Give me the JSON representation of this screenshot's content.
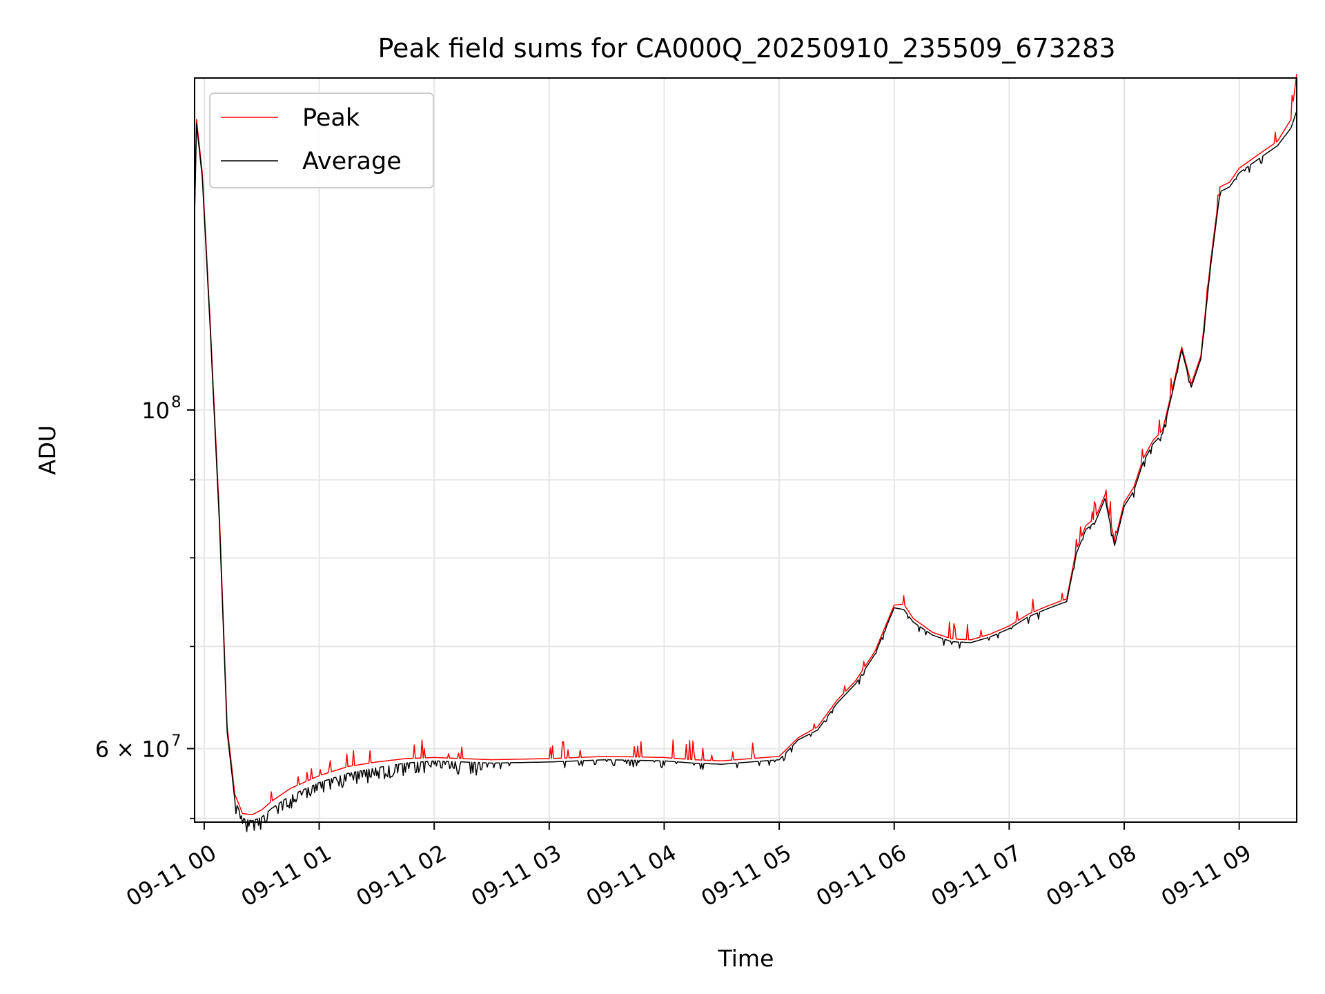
{
  "chart_data": {
    "type": "line",
    "title": "Peak field sums for CA000Q_20250910_235509_673283",
    "xlabel": "Time",
    "ylabel": "ADU",
    "y_scale": "log",
    "ylim": [
      53700000,
      165000000
    ],
    "xlim": [
      "2025-09-10 23:55:00",
      "2025-09-11 09:30:00"
    ],
    "grid": true,
    "legend_position": "upper-left",
    "x_ticks": [
      {
        "value": "2025-09-11 00:00",
        "label": "09-11 00"
      },
      {
        "value": "2025-09-11 01:00",
        "label": "09-11 01"
      },
      {
        "value": "2025-09-11 02:00",
        "label": "09-11 02"
      },
      {
        "value": "2025-09-11 03:00",
        "label": "09-11 03"
      },
      {
        "value": "2025-09-11 04:00",
        "label": "09-11 04"
      },
      {
        "value": "2025-09-11 05:00",
        "label": "09-11 05"
      },
      {
        "value": "2025-09-11 06:00",
        "label": "09-11 06"
      },
      {
        "value": "2025-09-11 07:00",
        "label": "09-11 07"
      },
      {
        "value": "2025-09-11 08:00",
        "label": "09-11 08"
      },
      {
        "value": "2025-09-11 09:00",
        "label": "09-11 09"
      }
    ],
    "y_major_ticks": [
      {
        "value": 60000000,
        "label_main": "6 × 10",
        "label_sup": "7"
      },
      {
        "value": 100000000,
        "label_main": "10",
        "label_sup": "8"
      }
    ],
    "y_minor_ticks": [
      54000000,
      70000000,
      80000000,
      90000000
    ],
    "series": [
      {
        "name": "Peak",
        "color": "#ff0000",
        "x": [
          "2025-09-10 23:55",
          "2025-09-10 23:56",
          "2025-09-10 23:59",
          "2025-09-11 00:03",
          "2025-09-11 00:08",
          "2025-09-11 00:12",
          "2025-09-11 00:16",
          "2025-09-11 00:20",
          "2025-09-11 00:25",
          "2025-09-11 00:30",
          "2025-09-11 00:35",
          "2025-09-11 00:45",
          "2025-09-11 01:00",
          "2025-09-11 01:15",
          "2025-09-11 01:30",
          "2025-09-11 01:45",
          "2025-09-11 02:00",
          "2025-09-11 02:30",
          "2025-09-11 03:00",
          "2025-09-11 03:30",
          "2025-09-11 04:00",
          "2025-09-11 04:15",
          "2025-09-11 04:30",
          "2025-09-11 05:00",
          "2025-09-11 05:10",
          "2025-09-11 05:20",
          "2025-09-11 05:30",
          "2025-09-11 05:40",
          "2025-09-11 05:50",
          "2025-09-11 06:00",
          "2025-09-11 06:05",
          "2025-09-11 06:10",
          "2025-09-11 06:20",
          "2025-09-11 06:30",
          "2025-09-11 06:40",
          "2025-09-11 06:50",
          "2025-09-11 07:00",
          "2025-09-11 07:10",
          "2025-09-11 07:20",
          "2025-09-11 07:30",
          "2025-09-11 07:35",
          "2025-09-11 07:40",
          "2025-09-11 07:45",
          "2025-09-11 07:50",
          "2025-09-11 07:55",
          "2025-09-11 08:00",
          "2025-09-11 08:05",
          "2025-09-11 08:10",
          "2025-09-11 08:15",
          "2025-09-11 08:20",
          "2025-09-11 08:25",
          "2025-09-11 08:30",
          "2025-09-11 08:35",
          "2025-09-11 08:40",
          "2025-09-11 08:45",
          "2025-09-11 08:50",
          "2025-09-11 08:55",
          "2025-09-11 09:00",
          "2025-09-11 09:10",
          "2025-09-11 09:20",
          "2025-09-11 09:27",
          "2025-09-11 09:30"
        ],
        "values": [
          135000000,
          155000000,
          143000000,
          115000000,
          85000000,
          62000000,
          56000000,
          54400000,
          54300000,
          54700000,
          55400000,
          56500000,
          57600000,
          58400000,
          58800000,
          59100000,
          59200000,
          59000000,
          59100000,
          59300000,
          59200000,
          59000000,
          58900000,
          59300000,
          61000000,
          62000000,
          64500000,
          66500000,
          69500000,
          74500000,
          74600000,
          73000000,
          71500000,
          70800000,
          70700000,
          71300000,
          72200000,
          73500000,
          74400000,
          75200000,
          81000000,
          84000000,
          85000000,
          88000000,
          82000000,
          87000000,
          89000000,
          93000000,
          95500000,
          97000000,
          103000000,
          110000000,
          104000000,
          108500000,
          125000000,
          140000000,
          141000000,
          144000000,
          147000000,
          150000000,
          155000000,
          166000000
        ]
      },
      {
        "name": "Average",
        "color": "#000000",
        "x": [
          "2025-09-10 23:55",
          "2025-09-10 23:56",
          "2025-09-10 23:59",
          "2025-09-11 00:03",
          "2025-09-11 00:08",
          "2025-09-11 00:12",
          "2025-09-11 00:16",
          "2025-09-11 00:20",
          "2025-09-11 00:25",
          "2025-09-11 00:30",
          "2025-09-11 00:35",
          "2025-09-11 00:45",
          "2025-09-11 01:00",
          "2025-09-11 01:15",
          "2025-09-11 01:30",
          "2025-09-11 01:45",
          "2025-09-11 02:00",
          "2025-09-11 02:30",
          "2025-09-11 03:00",
          "2025-09-11 03:30",
          "2025-09-11 04:00",
          "2025-09-11 04:15",
          "2025-09-11 04:30",
          "2025-09-11 05:00",
          "2025-09-11 05:10",
          "2025-09-11 05:20",
          "2025-09-11 05:30",
          "2025-09-11 05:40",
          "2025-09-11 05:50",
          "2025-09-11 06:00",
          "2025-09-11 06:05",
          "2025-09-11 06:10",
          "2025-09-11 06:20",
          "2025-09-11 06:30",
          "2025-09-11 06:40",
          "2025-09-11 06:50",
          "2025-09-11 07:00",
          "2025-09-11 07:10",
          "2025-09-11 07:20",
          "2025-09-11 07:30",
          "2025-09-11 07:35",
          "2025-09-11 07:40",
          "2025-09-11 07:45",
          "2025-09-11 07:50",
          "2025-09-11 07:55",
          "2025-09-11 08:00",
          "2025-09-11 08:05",
          "2025-09-11 08:10",
          "2025-09-11 08:15",
          "2025-09-11 08:20",
          "2025-09-11 08:25",
          "2025-09-11 08:30",
          "2025-09-11 08:35",
          "2025-09-11 08:40",
          "2025-09-11 08:45",
          "2025-09-11 08:50",
          "2025-09-11 08:55",
          "2025-09-11 09:00",
          "2025-09-11 09:10",
          "2025-09-11 09:20",
          "2025-09-11 09:27",
          "2025-09-11 09:30"
        ],
        "values": [
          134000000,
          154000000,
          142000000,
          114000000,
          84000000,
          61500000,
          55500000,
          54000000,
          53800000,
          54100000,
          54800000,
          55900000,
          57000000,
          57800000,
          58300000,
          58700000,
          58900000,
          58700000,
          58800000,
          59000000,
          58900000,
          58700000,
          58600000,
          59000000,
          60800000,
          61700000,
          64200000,
          66200000,
          69200000,
          74200000,
          74000000,
          72600000,
          71200000,
          70500000,
          70400000,
          71000000,
          71900000,
          73200000,
          74100000,
          74900000,
          80500000,
          83500000,
          84500000,
          87500000,
          81500000,
          86500000,
          88500000,
          92500000,
          95000000,
          96500000,
          102500000,
          109500000,
          103500000,
          108000000,
          124000000,
          139000000,
          140000000,
          143000000,
          146000000,
          149000000,
          153000000,
          157000000
        ]
      }
    ]
  }
}
